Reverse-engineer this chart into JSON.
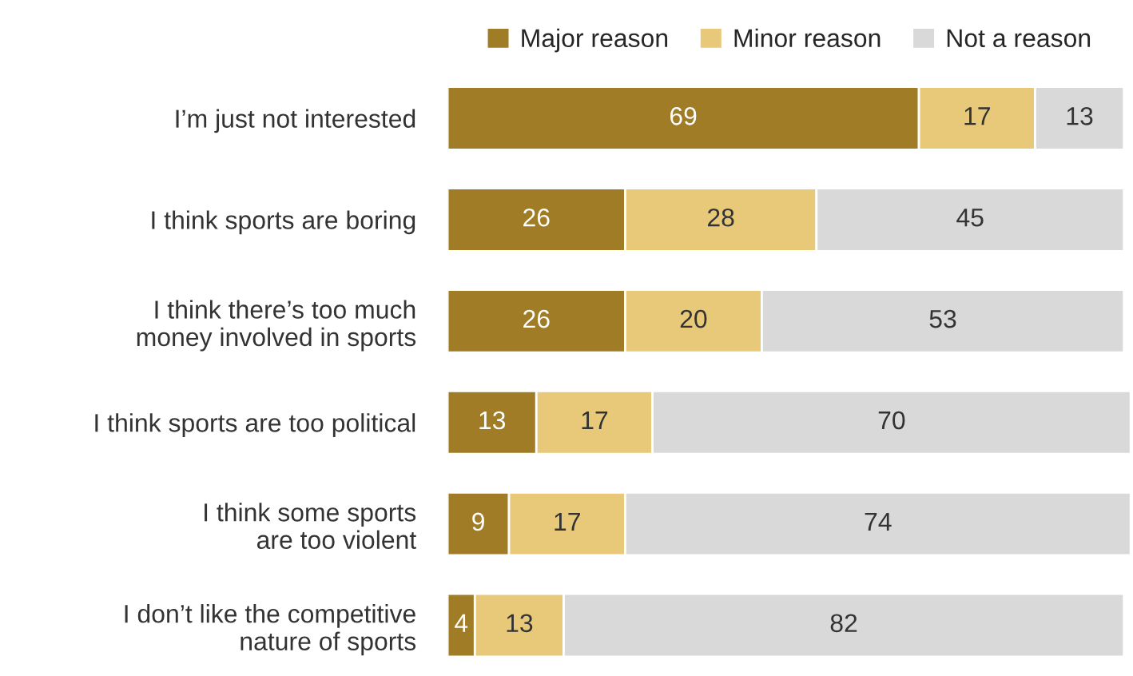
{
  "chart_data": {
    "type": "bar",
    "orientation": "horizontal",
    "stacked": true,
    "data_labels": true,
    "legend": "top",
    "grid": false,
    "categories": [
      "I’m just not interested",
      "I think sports are boring",
      "I think there’s too much\nmoney involved in sports",
      "I think sports are too political",
      "I think some sports\nare too violent",
      "I don’t like the competitive\nnature of sports"
    ],
    "series": [
      {
        "name": "Major reason",
        "color": "#a07c26",
        "values": [
          69,
          26,
          26,
          13,
          9,
          4
        ]
      },
      {
        "name": "Minor reason",
        "color": "#e8c97a",
        "values": [
          17,
          28,
          20,
          17,
          17,
          13
        ]
      },
      {
        "name": "Not a reason",
        "color": "#d9d9d9",
        "values": [
          13,
          45,
          53,
          70,
          74,
          82
        ]
      }
    ]
  }
}
